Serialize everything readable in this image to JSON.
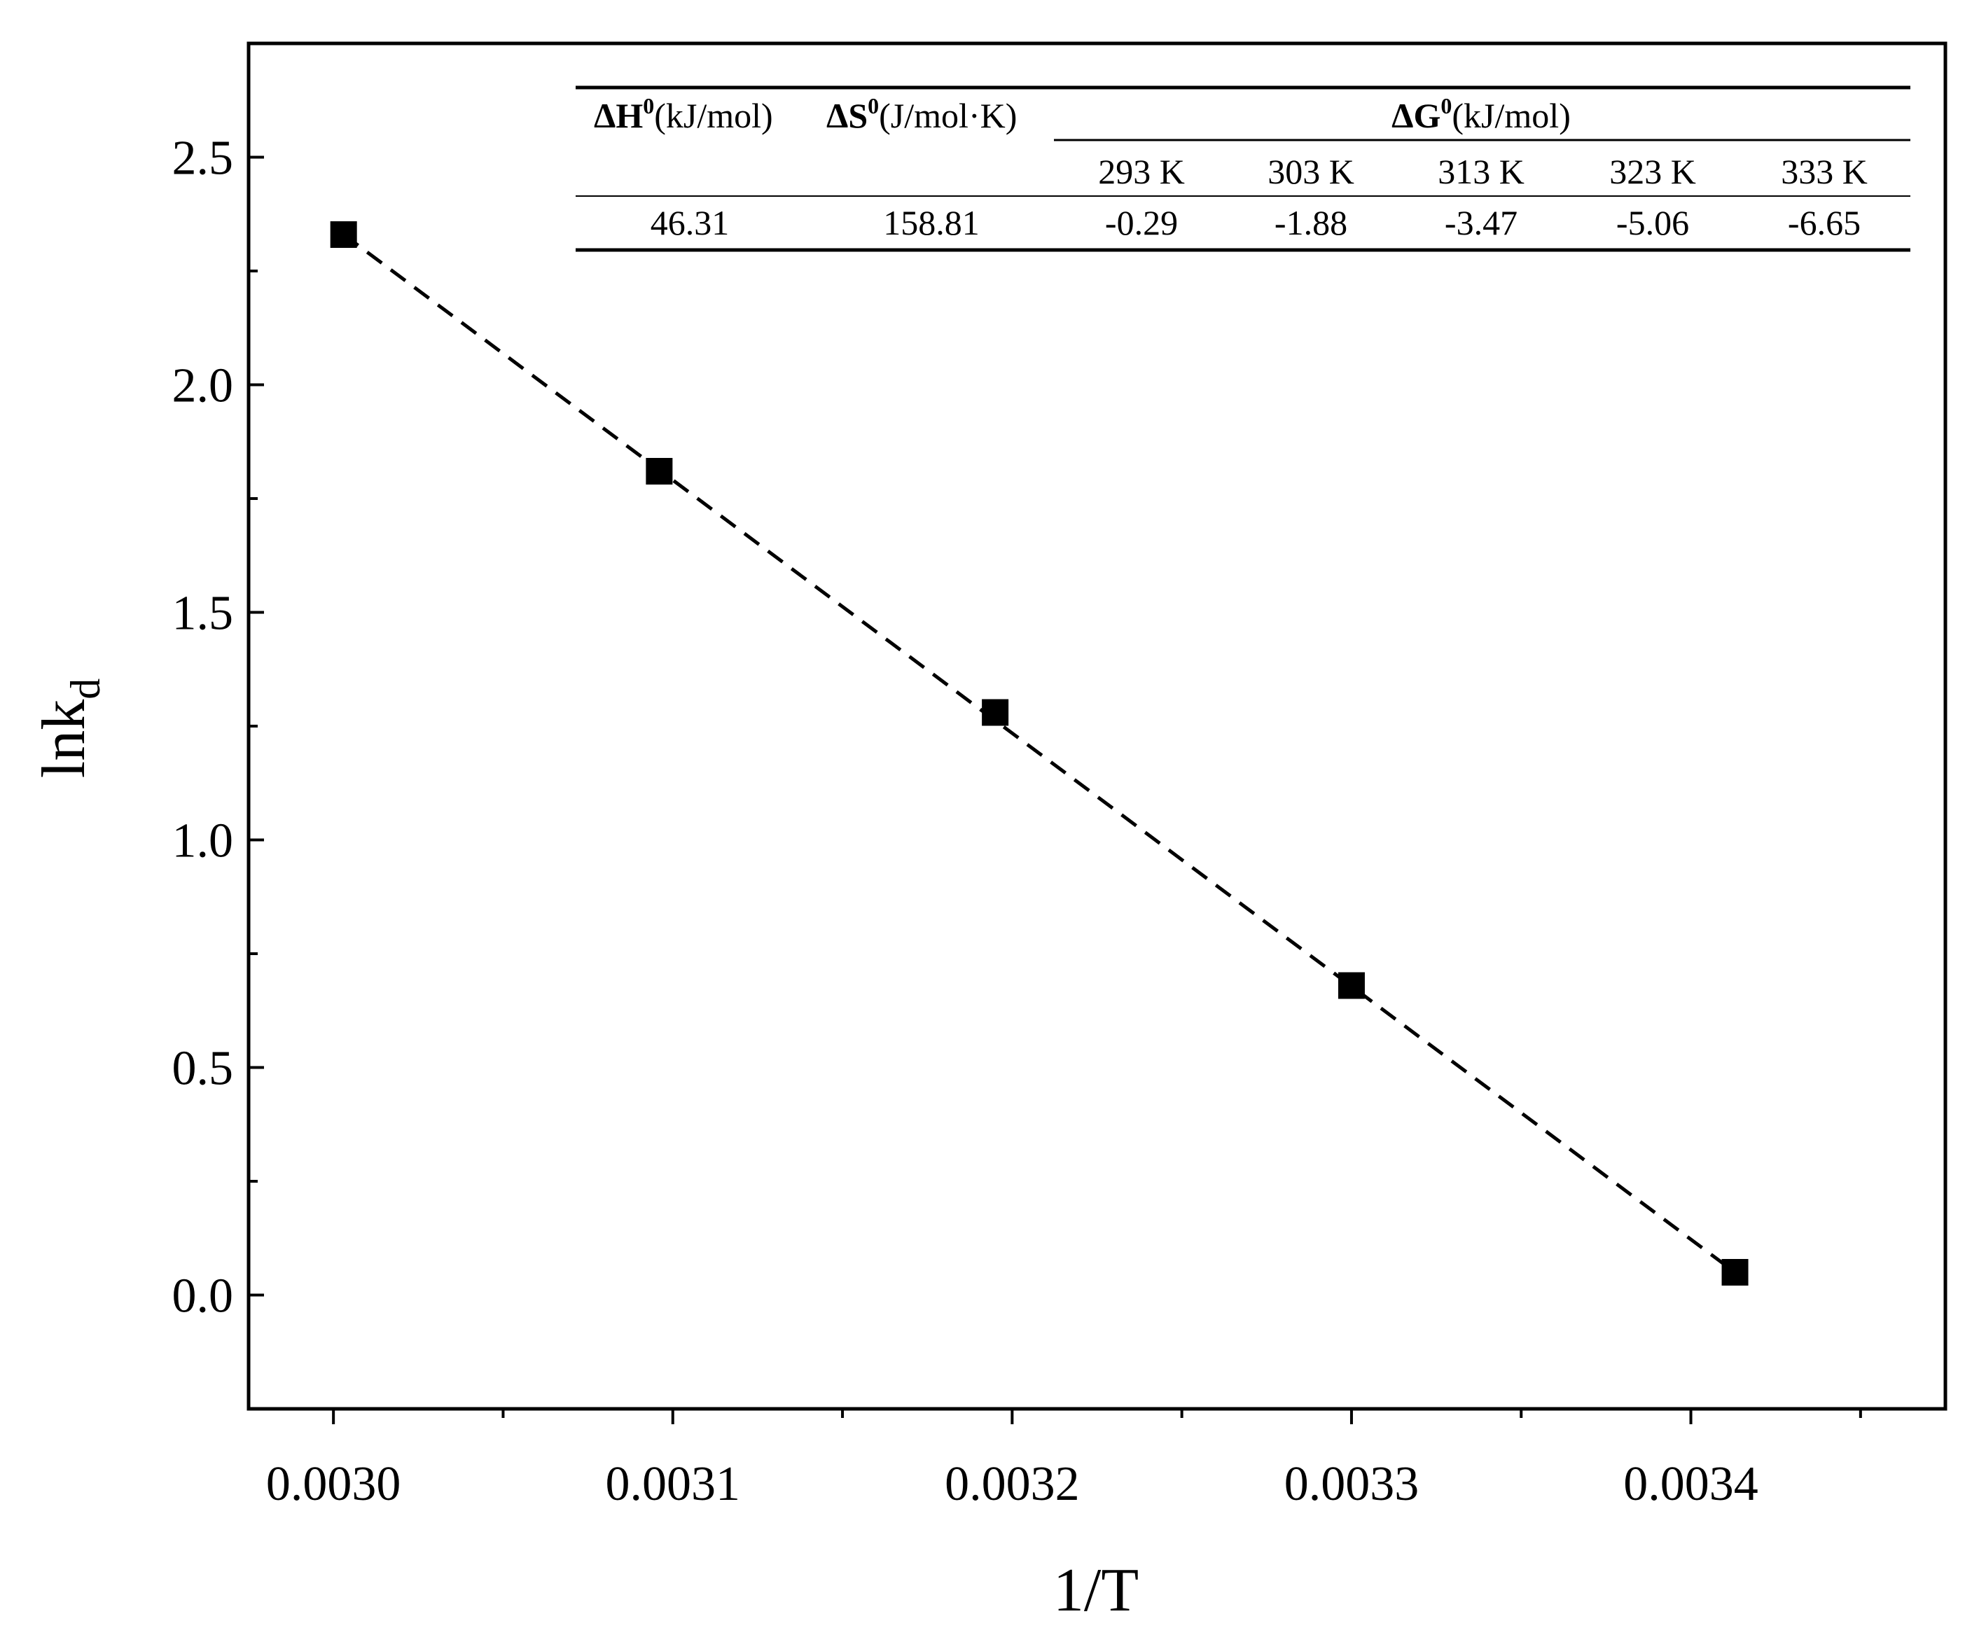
{
  "chart_data": {
    "type": "scatter",
    "xlabel": "1/T",
    "ylabel_main": "lnk",
    "ylabel_sub": "d",
    "xlim": [
      0.002975,
      0.003475
    ],
    "ylim": [
      -0.25,
      2.75
    ],
    "xticks": [
      0.003,
      0.0031,
      0.0032,
      0.0033,
      0.0034
    ],
    "xtick_labels": [
      "0.0030",
      "0.0031",
      "0.0032",
      "0.0033",
      "0.0034"
    ],
    "yticks": [
      0.0,
      0.5,
      1.0,
      1.5,
      2.0,
      2.5
    ],
    "ytick_labels": [
      "0.0",
      "0.5",
      "1.0",
      "1.5",
      "2.0",
      "2.5"
    ],
    "x_minor_step": 5e-05,
    "y_minor_step": 0.25,
    "grid": false,
    "series": [
      {
        "marker": "square",
        "color": "#000000",
        "points": [
          {
            "x": 0.003003,
            "y": 2.33
          },
          {
            "x": 0.003096,
            "y": 1.81
          },
          {
            "x": 0.003195,
            "y": 1.28
          },
          {
            "x": 0.0033,
            "y": 0.68
          },
          {
            "x": 0.003413,
            "y": 0.05
          }
        ]
      }
    ],
    "fit_line": {
      "style": "dashed",
      "color": "#000000",
      "points": [
        {
          "x": 0.003003,
          "y": 2.33
        },
        {
          "x": 0.003413,
          "y": 0.05
        }
      ]
    }
  },
  "inset_table": {
    "h_label": "ΔH",
    "h_sup": "0",
    "h_unit": "(kJ/mol)",
    "s_label": "ΔS",
    "s_sup": "0",
    "s_unit": "(J/mol·K)",
    "g_label": "ΔG",
    "g_sup": "0",
    "g_unit": "(kJ/mol)",
    "temperatures": [
      "293 K",
      "303 K",
      "313 K",
      "323 K",
      "333 K"
    ],
    "dH_value": "46.31",
    "dS_value": "158.81",
    "dG_values": [
      "-0.29",
      "-1.88",
      "-3.47",
      "-5.06",
      "-6.65"
    ]
  }
}
